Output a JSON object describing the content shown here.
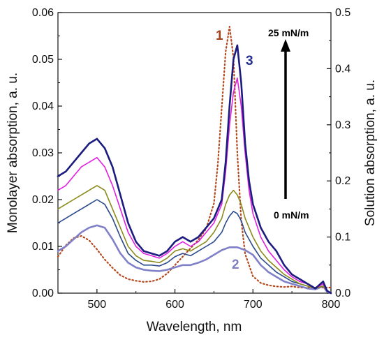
{
  "chart_data": {
    "type": "line",
    "title": "",
    "xlabel": "Wavelength, nm",
    "ylabel_left": "Monolayer absorption, a. u.",
    "ylabel_right": "Solution absorption, a. u.",
    "xlim": [
      450,
      800
    ],
    "ylim_left": [
      0,
      0.06
    ],
    "ylim_right": [
      0,
      0.5
    ],
    "x_ticks": [
      "500",
      "600",
      "700",
      "800"
    ],
    "y_ticks_left": [
      "0.00",
      "0.01",
      "0.02",
      "0.03",
      "0.04",
      "0.05",
      "0.06"
    ],
    "y_ticks_right": [
      "0.0",
      "0.1",
      "0.2",
      "0.3",
      "0.4",
      "0.5"
    ],
    "grid": false,
    "annotations": {
      "label_1": "1",
      "label_2": "2",
      "label_3": "3",
      "pressure_high": "25 mN/m",
      "pressure_low": "0 mN/m"
    },
    "series": [
      {
        "label": "1",
        "axis": "right",
        "style": "dotted",
        "color": "#b5481c",
        "x": [
          450,
          460,
          470,
          480,
          490,
          500,
          510,
          520,
          530,
          540,
          550,
          560,
          570,
          580,
          590,
          600,
          610,
          620,
          630,
          640,
          650,
          655,
          660,
          665,
          670,
          675,
          680,
          685,
          690,
          700,
          710,
          720,
          730,
          740,
          750,
          760,
          770,
          780,
          790,
          795,
          800
        ],
        "y": [
          0.065,
          0.085,
          0.098,
          0.102,
          0.094,
          0.078,
          0.06,
          0.045,
          0.032,
          0.025,
          0.022,
          0.02,
          0.021,
          0.025,
          0.035,
          0.05,
          0.065,
          0.08,
          0.095,
          0.115,
          0.16,
          0.23,
          0.33,
          0.43,
          0.475,
          0.42,
          0.25,
          0.13,
          0.07,
          0.03,
          0.018,
          0.014,
          0.012,
          0.011,
          0.012,
          0.01,
          0.01,
          0.01,
          0.01,
          0.01,
          0.01
        ]
      },
      {
        "label": "3",
        "axis": "left",
        "style": "solid",
        "color": "#1b1b80",
        "x": [
          450,
          460,
          470,
          480,
          490,
          500,
          510,
          520,
          530,
          540,
          550,
          560,
          570,
          580,
          590,
          600,
          610,
          620,
          630,
          640,
          650,
          660,
          665,
          670,
          675,
          680,
          685,
          690,
          695,
          700,
          710,
          720,
          730,
          740,
          750,
          760,
          770,
          780,
          790,
          795,
          800
        ],
        "y": [
          0.025,
          0.026,
          0.028,
          0.03,
          0.032,
          0.033,
          0.031,
          0.027,
          0.021,
          0.015,
          0.011,
          0.009,
          0.0085,
          0.008,
          0.009,
          0.011,
          0.012,
          0.011,
          0.012,
          0.014,
          0.016,
          0.02,
          0.028,
          0.04,
          0.05,
          0.053,
          0.045,
          0.032,
          0.024,
          0.019,
          0.014,
          0.011,
          0.009,
          0.006,
          0.004,
          0.003,
          0.002,
          0.001,
          0.0025,
          0.0005,
          0.0
        ]
      },
      {
        "label": "",
        "axis": "left",
        "style": "solid",
        "color": "#e020e0",
        "x": [
          450,
          460,
          470,
          480,
          490,
          500,
          510,
          520,
          530,
          540,
          550,
          560,
          570,
          580,
          590,
          600,
          610,
          620,
          630,
          640,
          650,
          660,
          665,
          670,
          675,
          680,
          685,
          690,
          695,
          700,
          710,
          720,
          730,
          740,
          750,
          760,
          770,
          780,
          790,
          795,
          800
        ],
        "y": [
          0.022,
          0.023,
          0.025,
          0.027,
          0.028,
          0.029,
          0.027,
          0.023,
          0.018,
          0.013,
          0.01,
          0.0085,
          0.008,
          0.0075,
          0.0085,
          0.01,
          0.011,
          0.01,
          0.011,
          0.013,
          0.015,
          0.019,
          0.026,
          0.036,
          0.043,
          0.046,
          0.04,
          0.03,
          0.022,
          0.017,
          0.012,
          0.009,
          0.007,
          0.005,
          0.0035,
          0.0025,
          0.002,
          0.001,
          0.002,
          0.0005,
          0.0
        ]
      },
      {
        "label": "",
        "axis": "left",
        "style": "solid",
        "color": "#8a8a1a",
        "x": [
          450,
          460,
          470,
          480,
          490,
          500,
          510,
          520,
          530,
          540,
          550,
          560,
          570,
          580,
          590,
          600,
          610,
          620,
          630,
          640,
          650,
          660,
          665,
          670,
          675,
          680,
          685,
          690,
          695,
          700,
          710,
          720,
          730,
          740,
          750,
          760,
          770,
          780,
          790,
          795,
          800
        ],
        "y": [
          0.018,
          0.019,
          0.02,
          0.021,
          0.022,
          0.023,
          0.022,
          0.018,
          0.014,
          0.01,
          0.008,
          0.007,
          0.0068,
          0.0065,
          0.0075,
          0.009,
          0.0095,
          0.009,
          0.01,
          0.011,
          0.013,
          0.016,
          0.019,
          0.021,
          0.022,
          0.021,
          0.019,
          0.016,
          0.014,
          0.012,
          0.009,
          0.007,
          0.0055,
          0.004,
          0.003,
          0.002,
          0.0015,
          0.001,
          0.0015,
          0.0005,
          0.0
        ]
      },
      {
        "label": "",
        "axis": "left",
        "style": "solid",
        "color": "#2a4a8a",
        "x": [
          450,
          460,
          470,
          480,
          490,
          500,
          510,
          520,
          530,
          540,
          550,
          560,
          570,
          580,
          590,
          600,
          610,
          620,
          630,
          640,
          650,
          660,
          665,
          670,
          675,
          680,
          685,
          690,
          695,
          700,
          710,
          720,
          730,
          740,
          750,
          760,
          770,
          780,
          790,
          795,
          800
        ],
        "y": [
          0.015,
          0.016,
          0.017,
          0.018,
          0.019,
          0.02,
          0.019,
          0.016,
          0.012,
          0.0085,
          0.007,
          0.006,
          0.006,
          0.0058,
          0.0065,
          0.0078,
          0.0085,
          0.008,
          0.009,
          0.01,
          0.011,
          0.013,
          0.015,
          0.0165,
          0.0175,
          0.017,
          0.0155,
          0.013,
          0.0115,
          0.01,
          0.0075,
          0.006,
          0.0045,
          0.0035,
          0.0025,
          0.002,
          0.0015,
          0.001,
          0.0015,
          0.0005,
          0.0
        ]
      },
      {
        "label": "2",
        "axis": "left",
        "style": "solid",
        "color": "#8080c8",
        "x": [
          450,
          460,
          470,
          480,
          490,
          500,
          510,
          520,
          530,
          540,
          550,
          560,
          570,
          580,
          590,
          600,
          610,
          620,
          630,
          640,
          650,
          660,
          670,
          680,
          690,
          700,
          710,
          720,
          730,
          740,
          750,
          760,
          770,
          780,
          790,
          795,
          800
        ],
        "y": [
          0.009,
          0.01,
          0.0115,
          0.013,
          0.014,
          0.0145,
          0.014,
          0.0115,
          0.0085,
          0.0065,
          0.0055,
          0.005,
          0.0048,
          0.0047,
          0.005,
          0.0055,
          0.006,
          0.006,
          0.0065,
          0.0072,
          0.0082,
          0.0092,
          0.0098,
          0.0098,
          0.0092,
          0.0082,
          0.006,
          0.0045,
          0.0035,
          0.0025,
          0.002,
          0.0015,
          0.001,
          0.0008,
          0.0015,
          0.0003,
          0.0
        ]
      }
    ]
  }
}
